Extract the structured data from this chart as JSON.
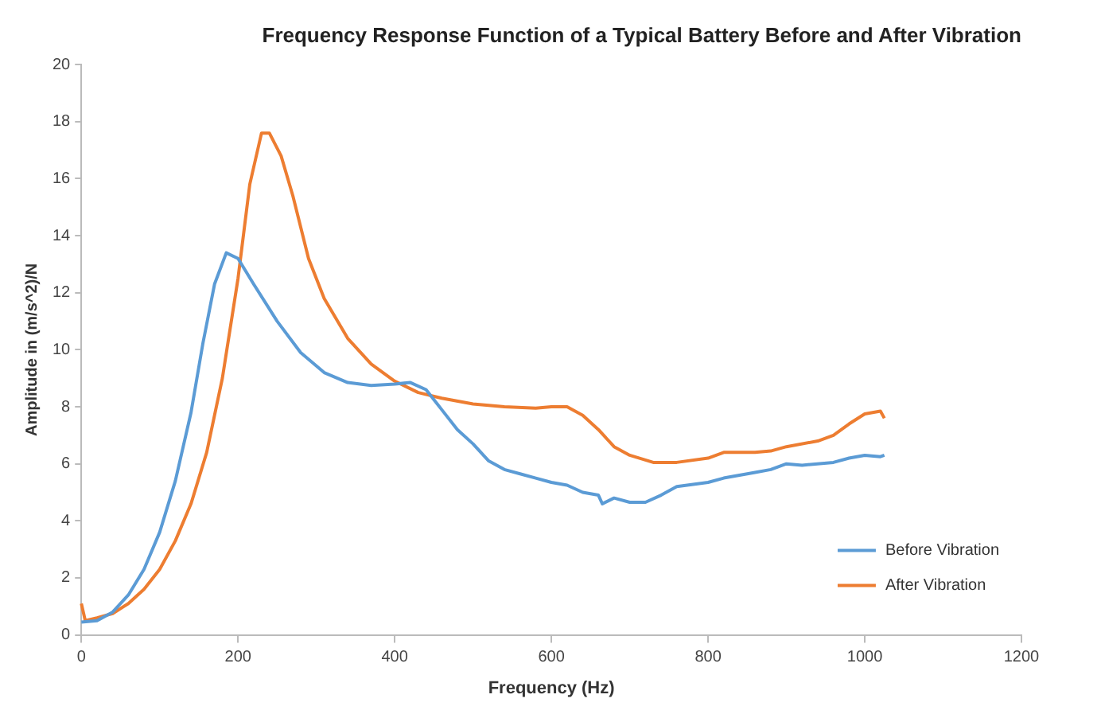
{
  "chart_data": {
    "type": "line",
    "title": "Frequency Response Function of a Typical Battery Before and After Vibration",
    "xlabel": "Frequency (Hz)",
    "ylabel": "Amplitude in (m/s^2)/N",
    "xlim": [
      0,
      1200
    ],
    "xticks": [
      0,
      200,
      400,
      600,
      800,
      1000,
      1200
    ],
    "ylim": [
      0,
      20
    ],
    "yticks": [
      0,
      2,
      4,
      6,
      8,
      10,
      12,
      14,
      16,
      18,
      20
    ],
    "grid": false,
    "legend": "bottom right",
    "marker": "none",
    "line_style": "solid",
    "series": [
      {
        "name": "Before Vibration",
        "color": "#5b9bd5",
        "x": [
          0,
          20,
          40,
          60,
          80,
          100,
          120,
          140,
          155,
          170,
          185,
          200,
          220,
          250,
          280,
          310,
          340,
          370,
          400,
          420,
          440,
          460,
          480,
          500,
          520,
          540,
          560,
          580,
          600,
          620,
          640,
          660,
          665,
          680,
          700,
          720,
          740,
          760,
          800,
          820,
          860,
          880,
          900,
          920,
          960,
          980,
          1000,
          1020,
          1025
        ],
        "values": [
          0.45,
          0.5,
          0.8,
          1.4,
          2.3,
          3.6,
          5.4,
          7.8,
          10.2,
          12.3,
          13.4,
          13.2,
          12.3,
          11.0,
          9.9,
          9.2,
          8.85,
          8.75,
          8.8,
          8.85,
          8.6,
          7.9,
          7.2,
          6.7,
          6.1,
          5.8,
          5.65,
          5.5,
          5.35,
          5.25,
          5.0,
          4.9,
          4.6,
          4.8,
          4.65,
          4.65,
          4.9,
          5.2,
          5.35,
          5.5,
          5.7,
          5.8,
          6.0,
          5.95,
          6.05,
          6.2,
          6.3,
          6.25,
          6.3
        ]
      },
      {
        "name": "After Vibration",
        "color": "#ed7d31",
        "x": [
          0,
          5,
          20,
          40,
          60,
          80,
          100,
          120,
          140,
          160,
          180,
          200,
          215,
          230,
          240,
          255,
          270,
          290,
          310,
          340,
          370,
          400,
          430,
          460,
          500,
          540,
          580,
          600,
          620,
          640,
          660,
          680,
          700,
          730,
          760,
          800,
          820,
          860,
          880,
          900,
          940,
          960,
          980,
          1000,
          1010,
          1020,
          1025
        ],
        "values": [
          1.1,
          0.5,
          0.6,
          0.75,
          1.1,
          1.6,
          2.3,
          3.3,
          4.6,
          6.4,
          9.0,
          12.5,
          15.8,
          17.6,
          17.6,
          16.8,
          15.4,
          13.2,
          11.8,
          10.4,
          9.5,
          8.9,
          8.5,
          8.3,
          8.1,
          8.0,
          7.95,
          8.0,
          8.0,
          7.7,
          7.2,
          6.6,
          6.3,
          6.05,
          6.05,
          6.2,
          6.4,
          6.4,
          6.45,
          6.6,
          6.8,
          7.0,
          7.4,
          7.75,
          7.8,
          7.85,
          7.6
        ]
      }
    ]
  }
}
